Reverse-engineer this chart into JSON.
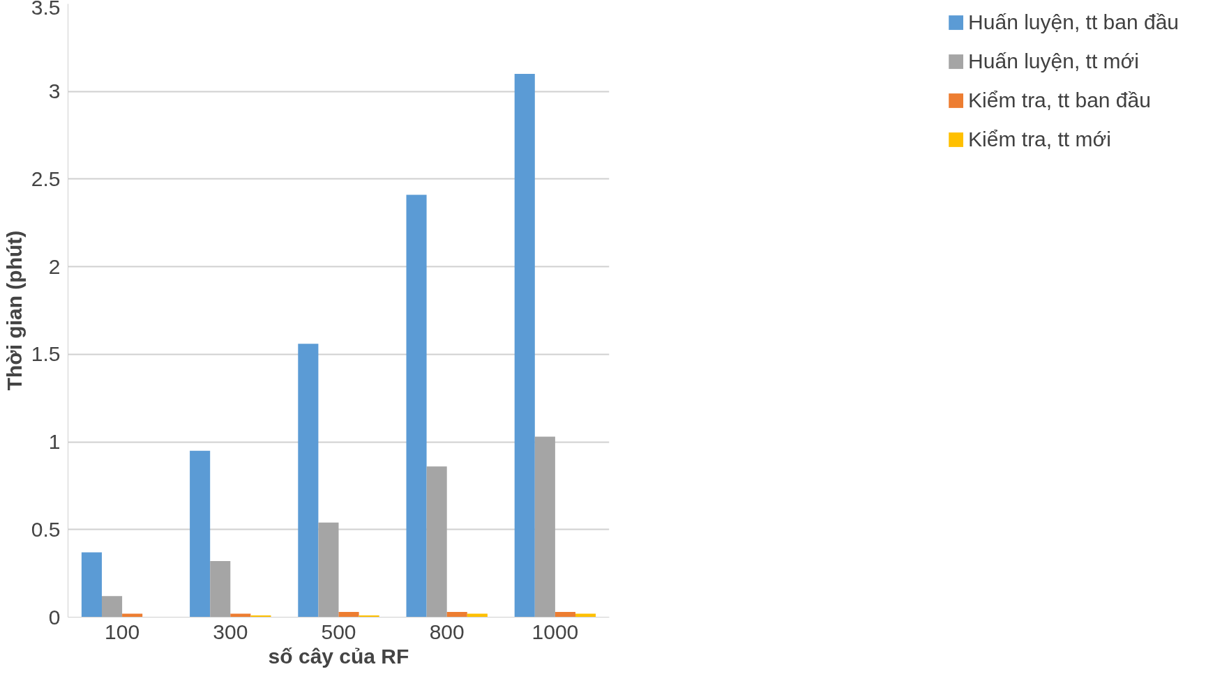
{
  "chart_data": {
    "type": "bar",
    "xlabel": "số cây của RF",
    "ylabel": "Thời gian (phút)",
    "categories": [
      "100",
      "300",
      "500",
      "800",
      "1000"
    ],
    "series": [
      {
        "name": "Huấn luyện, tt ban đầu",
        "color": "#5b9bd5",
        "values": [
          0.37,
          0.95,
          1.56,
          2.41,
          3.1
        ]
      },
      {
        "name": "Huấn luyện, tt mới",
        "color": "#a5a5a5",
        "values": [
          0.12,
          0.32,
          0.54,
          0.86,
          1.03
        ]
      },
      {
        "name": "Kiểm tra, tt ban đầu",
        "color": "#ed7d31",
        "values": [
          0.02,
          0.02,
          0.03,
          0.03,
          0.03
        ]
      },
      {
        "name": "Kiểm tra, tt mới",
        "color": "#ffc000",
        "values": [
          0,
          0.01,
          0.01,
          0.02,
          0.02
        ]
      }
    ],
    "ylim": [
      0,
      3.5
    ],
    "yticks": [
      0,
      0.5,
      1,
      1.5,
      2,
      2.5,
      3,
      3.5
    ],
    "grid": "y",
    "legend": "right"
  }
}
